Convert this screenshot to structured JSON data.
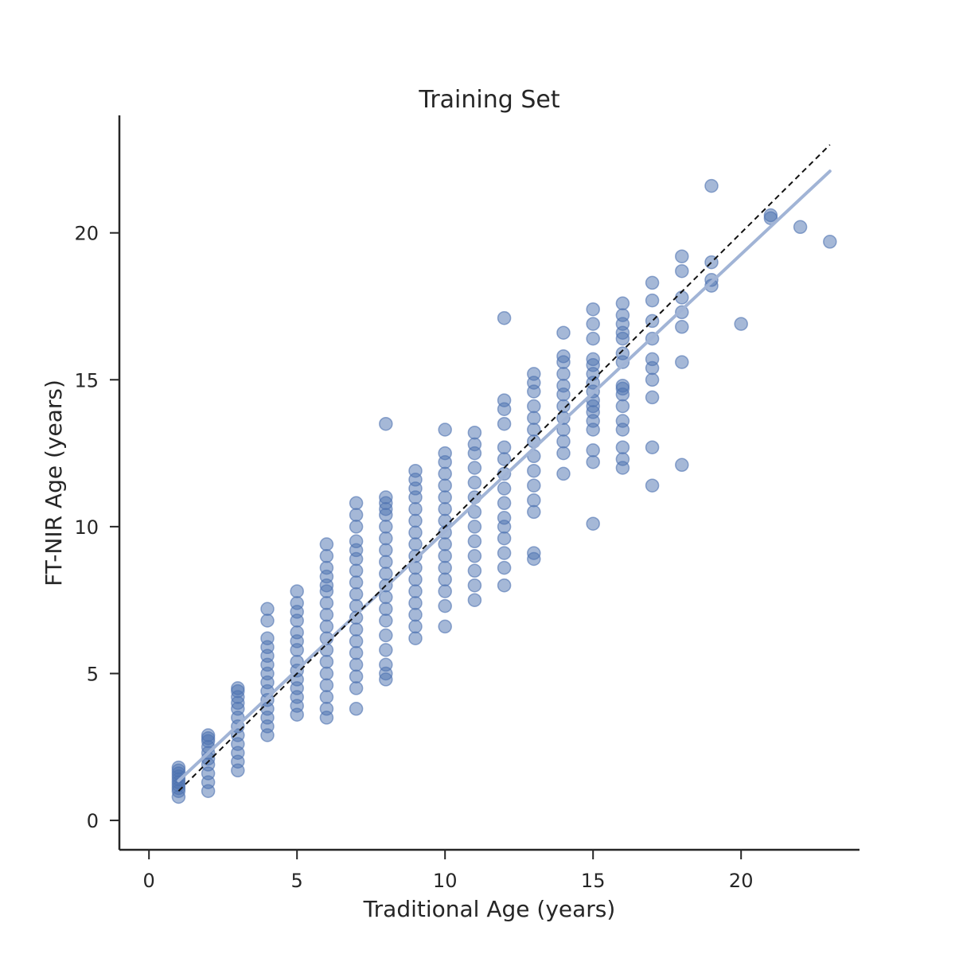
{
  "chart_data": {
    "type": "scatter",
    "title": "Training Set",
    "xlabel": "Traditional Age (years)",
    "ylabel": "FT-NIR Age (years)",
    "xlim": [
      -1,
      24
    ],
    "ylim": [
      -1,
      24
    ],
    "xticks": [
      0,
      5,
      10,
      15,
      20
    ],
    "yticks": [
      0,
      5,
      10,
      15,
      20
    ],
    "grid": false,
    "colors": {
      "points": "#4c72b0",
      "fit_line": "#a1b4d6",
      "identity_line": "#111111",
      "axes": "#262626"
    },
    "fit_line": {
      "x": [
        1,
        23
      ],
      "y": [
        1.35,
        22.1
      ]
    },
    "identity_line": {
      "x": [
        1,
        23
      ],
      "y": [
        1,
        23
      ]
    },
    "points": {
      "x": [
        1,
        1,
        1,
        1,
        1,
        1,
        1,
        1,
        1,
        1,
        2,
        2,
        2,
        2,
        2,
        2,
        2,
        2,
        2,
        2,
        3,
        3,
        3,
        3,
        3,
        3,
        3,
        3,
        3,
        3,
        3,
        3,
        4,
        4,
        4,
        4,
        4,
        4,
        4,
        4,
        4,
        4,
        4,
        4,
        4,
        4,
        5,
        5,
        5,
        5,
        5,
        5,
        5,
        5,
        5,
        5,
        5,
        5,
        5,
        5,
        6,
        6,
        6,
        6,
        6,
        6,
        6,
        6,
        6,
        6,
        6,
        6,
        6,
        6,
        6,
        6,
        6,
        7,
        7,
        7,
        7,
        7,
        7,
        7,
        7,
        7,
        7,
        7,
        7,
        7,
        7,
        7,
        7,
        7,
        7,
        8,
        8,
        8,
        8,
        8,
        8,
        8,
        8,
        8,
        8,
        8,
        8,
        8,
        8,
        8,
        8,
        8,
        8,
        8,
        9,
        9,
        9,
        9,
        9,
        9,
        9,
        9,
        9,
        9,
        9,
        9,
        9,
        9,
        9,
        9,
        10,
        10,
        10,
        10,
        10,
        10,
        10,
        10,
        10,
        10,
        10,
        10,
        10,
        10,
        10,
        10,
        11,
        11,
        11,
        11,
        11,
        11,
        11,
        11,
        11,
        11,
        11,
        11,
        11,
        12,
        12,
        12,
        12,
        12,
        12,
        12,
        12,
        12,
        12,
        12,
        12,
        12,
        12,
        12,
        13,
        13,
        13,
        13,
        13,
        13,
        13,
        13,
        13,
        13,
        13,
        13,
        13,
        13,
        14,
        14,
        14,
        14,
        14,
        14,
        14,
        14,
        14,
        14,
        14,
        14,
        15,
        15,
        15,
        15,
        15,
        15,
        15,
        15,
        15,
        15,
        15,
        15,
        15,
        15,
        15,
        15,
        16,
        16,
        16,
        16,
        16,
        16,
        16,
        16,
        16,
        16,
        16,
        16,
        16,
        16,
        16,
        16,
        17,
        17,
        17,
        17,
        17,
        17,
        17,
        17,
        17,
        17,
        18,
        18,
        18,
        18,
        18,
        18,
        18,
        19,
        19,
        19,
        19,
        20,
        21,
        21,
        22,
        23
      ],
      "y": [
        0.8,
        1.0,
        1.1,
        1.2,
        1.3,
        1.4,
        1.5,
        1.6,
        1.7,
        1.8,
        1.0,
        1.3,
        1.6,
        1.9,
        2.1,
        2.3,
        2.5,
        2.7,
        2.8,
        2.9,
        1.7,
        2.0,
        2.3,
        2.6,
        2.9,
        3.2,
        3.5,
        3.8,
        4.0,
        4.2,
        4.4,
        4.5,
        2.9,
        3.2,
        3.5,
        3.8,
        4.1,
        4.4,
        4.7,
        5.0,
        5.3,
        5.6,
        5.9,
        6.2,
        6.8,
        7.2,
        3.6,
        3.9,
        4.2,
        4.5,
        4.8,
        5.1,
        5.4,
        5.8,
        6.1,
        6.4,
        6.8,
        7.1,
        7.4,
        7.8,
        3.5,
        3.8,
        4.2,
        4.6,
        5.0,
        5.4,
        5.8,
        6.2,
        6.6,
        7.0,
        7.4,
        7.8,
        8.0,
        8.3,
        8.6,
        9.0,
        9.4,
        3.8,
        4.5,
        4.9,
        5.3,
        5.7,
        6.1,
        6.5,
        6.9,
        7.3,
        7.7,
        8.1,
        8.5,
        8.9,
        9.2,
        9.5,
        10.0,
        10.4,
        10.8,
        4.8,
        5.3,
        5.8,
        6.3,
        6.8,
        7.2,
        7.6,
        8.0,
        8.4,
        8.8,
        9.2,
        9.6,
        10.0,
        10.4,
        10.6,
        10.8,
        11.0,
        13.5,
        5.0,
        6.2,
        6.6,
        7.0,
        7.4,
        7.8,
        8.2,
        8.6,
        9.0,
        9.4,
        9.8,
        10.2,
        10.6,
        11.0,
        11.3,
        11.6,
        11.9,
        6.6,
        7.3,
        7.8,
        8.2,
        8.6,
        9.0,
        9.4,
        9.8,
        10.2,
        10.6,
        11.0,
        11.4,
        11.8,
        12.2,
        12.5,
        13.3,
        7.5,
        8.0,
        8.5,
        9.0,
        9.5,
        10.0,
        10.5,
        11.0,
        11.5,
        12.0,
        12.5,
        12.8,
        13.2,
        8.0,
        8.6,
        9.1,
        9.6,
        10.0,
        10.3,
        10.8,
        11.3,
        11.8,
        12.3,
        12.7,
        13.5,
        14.0,
        14.3,
        17.1,
        8.9,
        9.1,
        10.5,
        10.9,
        11.4,
        11.9,
        12.4,
        12.9,
        13.3,
        13.7,
        14.1,
        14.6,
        14.9,
        15.2,
        11.8,
        12.5,
        12.9,
        13.3,
        13.7,
        14.1,
        14.5,
        14.8,
        15.2,
        15.6,
        15.8,
        16.6,
        10.1,
        12.2,
        12.6,
        13.3,
        13.6,
        13.9,
        14.3,
        14.6,
        14.9,
        15.2,
        15.5,
        15.7,
        16.4,
        16.9,
        17.4,
        14.1,
        12.0,
        12.3,
        12.7,
        13.3,
        13.6,
        14.1,
        14.5,
        14.7,
        15.6,
        15.9,
        16.4,
        16.6,
        16.9,
        17.2,
        17.6,
        14.8,
        11.4,
        12.7,
        14.4,
        15.0,
        15.4,
        16.4,
        17.0,
        17.7,
        18.3,
        15.7,
        12.1,
        15.6,
        16.8,
        17.3,
        18.7,
        19.2,
        17.8,
        18.2,
        18.4,
        19.0,
        21.6,
        16.9,
        20.6,
        20.5,
        20.2,
        19.7
      ]
    }
  }
}
